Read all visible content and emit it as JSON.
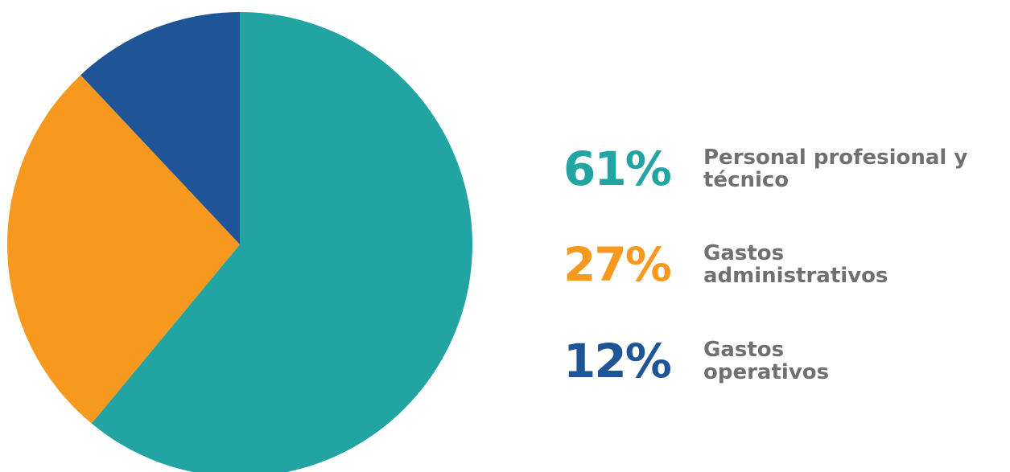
{
  "chart_data": {
    "type": "pie",
    "slices": [
      {
        "label": "Personal profesional y técnico",
        "label_lines": [
          "Personal profesional y",
          "técnico"
        ],
        "value": 61,
        "display": "61%",
        "color": "#22a4a3"
      },
      {
        "label": "Gastos administrativos",
        "label_lines": [
          "Gastos",
          "administrativos"
        ],
        "value": 27,
        "display": "27%",
        "color": "#f6991e"
      },
      {
        "label": "Gastos operativos",
        "label_lines": [
          "Gastos",
          "operativos"
        ],
        "value": 12,
        "display": "12%",
        "color": "#1f5496"
      }
    ],
    "start_angle_deg": 0,
    "direction": "clockwise",
    "legend_position": "right"
  },
  "legend": {
    "items": [
      {
        "pct": "61%",
        "line1": "Personal profesional y",
        "line2": "técnico",
        "color": "#22a4a3"
      },
      {
        "pct": "27%",
        "line1": "Gastos",
        "line2": "administrativos",
        "color": "#f6991e"
      },
      {
        "pct": "12%",
        "line1": "Gastos",
        "line2": "operativos",
        "color": "#1f5496"
      }
    ],
    "label_color": "#707070"
  }
}
